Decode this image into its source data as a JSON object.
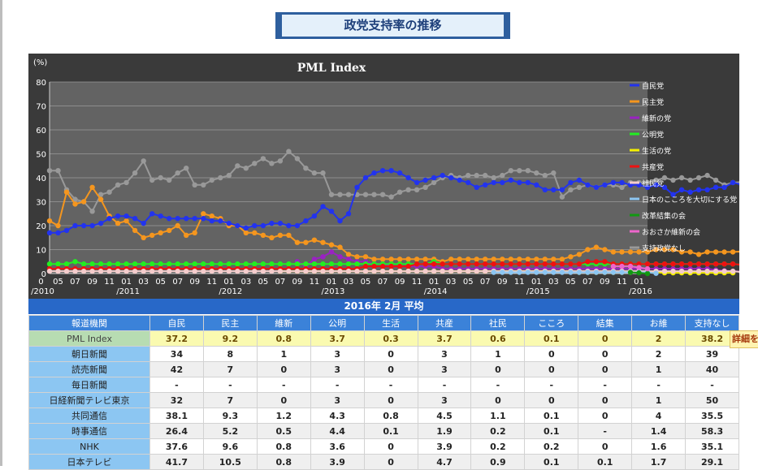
{
  "page_title": "政党支持率の推移",
  "detail_label": "詳細を",
  "table": {
    "title": "2016年 2月 平均",
    "columns": [
      "報道機関",
      "自民",
      "民主",
      "維新",
      "公明",
      "生活",
      "共産",
      "社民",
      "こころ",
      "結集",
      "お維",
      "支持なし"
    ],
    "rows": [
      [
        "PML Index",
        "37.2",
        "9.2",
        "0.8",
        "3.7",
        "0.3",
        "3.7",
        "0.6",
        "0.1",
        "0",
        "2",
        "38.2"
      ],
      [
        "朝日新聞",
        "34",
        "8",
        "1",
        "3",
        "0",
        "3",
        "1",
        "0",
        "0",
        "2",
        "39"
      ],
      [
        "読売新聞",
        "42",
        "7",
        "0",
        "3",
        "0",
        "3",
        "0",
        "0",
        "0",
        "1",
        "40"
      ],
      [
        "毎日新聞",
        "-",
        "-",
        "-",
        "-",
        "-",
        "-",
        "-",
        "-",
        "-",
        "-",
        "-"
      ],
      [
        "日経新聞テレビ東京",
        "32",
        "7",
        "0",
        "3",
        "0",
        "3",
        "0",
        "0",
        "0",
        "1",
        "50"
      ],
      [
        "共同通信",
        "38.1",
        "9.3",
        "1.2",
        "4.3",
        "0.8",
        "4.5",
        "1.1",
        "0.1",
        "0",
        "4",
        "35.5"
      ],
      [
        "時事通信",
        "26.4",
        "5.2",
        "0.5",
        "4.4",
        "0.1",
        "1.9",
        "0.2",
        "0.1",
        "-",
        "1.4",
        "58.3"
      ],
      [
        "NHK",
        "37.6",
        "9.6",
        "0.8",
        "3.6",
        "0",
        "3.9",
        "0.2",
        "0.2",
        "0",
        "1.6",
        "35.1"
      ],
      [
        "日本テレビ",
        "41.7",
        "10.5",
        "0.8",
        "3.9",
        "0",
        "4.7",
        "0.9",
        "0.1",
        "0.1",
        "1.7",
        "29.1"
      ]
    ]
  },
  "chart_data": {
    "type": "line",
    "title": "PML Index",
    "ylabel": "(%)",
    "ylim": [
      0,
      80
    ],
    "yticks": [
      0,
      10,
      20,
      30,
      40,
      50,
      60,
      70,
      80
    ],
    "xlim": [
      "2010-04",
      "2016-02"
    ],
    "grid": true,
    "legend_position": "right",
    "x_ticks": [
      {
        "m": "2010-03",
        "top": "0",
        "bottom": "/2010"
      },
      {
        "m": "2010-05",
        "top": "05",
        "bottom": ""
      },
      {
        "m": "2010-07",
        "top": "07",
        "bottom": ""
      },
      {
        "m": "2010-09",
        "top": "09",
        "bottom": ""
      },
      {
        "m": "2010-11",
        "top": "11",
        "bottom": ""
      },
      {
        "m": "2011-01",
        "top": "01",
        "bottom": "/2011"
      },
      {
        "m": "2011-03",
        "top": "03",
        "bottom": ""
      },
      {
        "m": "2011-05",
        "top": "05",
        "bottom": ""
      },
      {
        "m": "2011-07",
        "top": "07",
        "bottom": ""
      },
      {
        "m": "2011-09",
        "top": "09",
        "bottom": ""
      },
      {
        "m": "2011-11",
        "top": "11",
        "bottom": ""
      },
      {
        "m": "2012-01",
        "top": "01",
        "bottom": "/2012"
      },
      {
        "m": "2012-03",
        "top": "03",
        "bottom": ""
      },
      {
        "m": "2012-05",
        "top": "05",
        "bottom": ""
      },
      {
        "m": "2012-07",
        "top": "07",
        "bottom": ""
      },
      {
        "m": "2012-09",
        "top": "09",
        "bottom": ""
      },
      {
        "m": "2012-11",
        "top": "11",
        "bottom": ""
      },
      {
        "m": "2013-01",
        "top": "01",
        "bottom": "/2013"
      },
      {
        "m": "2013-03",
        "top": "03",
        "bottom": ""
      },
      {
        "m": "2013-05",
        "top": "05",
        "bottom": ""
      },
      {
        "m": "2013-07",
        "top": "07",
        "bottom": ""
      },
      {
        "m": "2013-09",
        "top": "09",
        "bottom": ""
      },
      {
        "m": "2013-11",
        "top": "11",
        "bottom": ""
      },
      {
        "m": "2014-01",
        "top": "01",
        "bottom": "/2014"
      },
      {
        "m": "2014-03",
        "top": "03",
        "bottom": ""
      },
      {
        "m": "2014-05",
        "top": "05",
        "bottom": ""
      },
      {
        "m": "2014-07",
        "top": "07",
        "bottom": ""
      },
      {
        "m": "2014-09",
        "top": "09",
        "bottom": ""
      },
      {
        "m": "2014-11",
        "top": "11",
        "bottom": ""
      },
      {
        "m": "2015-01",
        "top": "01",
        "bottom": "/2015"
      },
      {
        "m": "2015-03",
        "top": "03",
        "bottom": ""
      },
      {
        "m": "2015-05",
        "top": "05",
        "bottom": ""
      },
      {
        "m": "2015-07",
        "top": "07",
        "bottom": ""
      },
      {
        "m": "2015-09",
        "top": "09",
        "bottom": ""
      },
      {
        "m": "2015-11",
        "top": "11",
        "bottom": ""
      },
      {
        "m": "2016-01",
        "top": "01",
        "bottom": "/2016"
      }
    ],
    "series": [
      {
        "name": "自民党",
        "color": "#2233ee",
        "start": "2010-04",
        "values": [
          17,
          17,
          18,
          20,
          20,
          20,
          21,
          23,
          24,
          24,
          23,
          21,
          25,
          24,
          23,
          23,
          23,
          23,
          23,
          22,
          22,
          21,
          20,
          19,
          20,
          20,
          21,
          21,
          20,
          20,
          22,
          24,
          28,
          26,
          22,
          25,
          36,
          40,
          42,
          43,
          43,
          42,
          40,
          38,
          39,
          40,
          41,
          40,
          39,
          38,
          36,
          37,
          38,
          38,
          39,
          38,
          38,
          37,
          35,
          35,
          35,
          38,
          39,
          37,
          36,
          37,
          38,
          38,
          37,
          37,
          36,
          37,
          36,
          33,
          35,
          34,
          35,
          35,
          36,
          36,
          38,
          37.2
        ]
      },
      {
        "name": "民主党",
        "color": "#f5961e",
        "start": "2010-04",
        "values": [
          22,
          20,
          34,
          29,
          30,
          36,
          31,
          24,
          21,
          22,
          18,
          15,
          16,
          17,
          18,
          20,
          16,
          17,
          25,
          24,
          23,
          20,
          20,
          17,
          17,
          16,
          15,
          16,
          16,
          13,
          13,
          14,
          13,
          12,
          11,
          8,
          7,
          7,
          6,
          6,
          6,
          6,
          6,
          6,
          6,
          6,
          5,
          6,
          6,
          6,
          6,
          6,
          6,
          6,
          6,
          6,
          6,
          6,
          6,
          6,
          6,
          7,
          8,
          10,
          11,
          10,
          9,
          9,
          9,
          9,
          9,
          10,
          10,
          10,
          9,
          9,
          8,
          9,
          9,
          9,
          9,
          9.2
        ]
      },
      {
        "name": "維新の党",
        "color": "#9a22c2",
        "start": "2012-09",
        "values": [
          5,
          3,
          6,
          7,
          9,
          7,
          6,
          5,
          5,
          4,
          4,
          3,
          3,
          3,
          3,
          3,
          3,
          2,
          2,
          2,
          2,
          2,
          2,
          2,
          2,
          2,
          2,
          2,
          2,
          2,
          2,
          2,
          2,
          2,
          2,
          2,
          2,
          2,
          2,
          2,
          2,
          2,
          2,
          2,
          2,
          2,
          2,
          2,
          2,
          1.5,
          1.2,
          1,
          0.8
        ]
      },
      {
        "name": "公明党",
        "color": "#22ee22",
        "start": "2010-04",
        "values": [
          4,
          4,
          4,
          5,
          4,
          4,
          4,
          4,
          4,
          4,
          4,
          4,
          4,
          4,
          4,
          4,
          4,
          4,
          4,
          4,
          4,
          4,
          4,
          4,
          4,
          4,
          4,
          4,
          4,
          4,
          4,
          4,
          4,
          4,
          4,
          4,
          4,
          4,
          4,
          4,
          4,
          4,
          4,
          4,
          4,
          5,
          4,
          4,
          4,
          4,
          4,
          4,
          4,
          4,
          4,
          4,
          4,
          4,
          4,
          4,
          4,
          4,
          4,
          4,
          4,
          4,
          4,
          4,
          4,
          4,
          4,
          4,
          4,
          4,
          4,
          4,
          4,
          4,
          4,
          4,
          4,
          3.7
        ]
      },
      {
        "name": "生活の党",
        "color": "#f5f000",
        "start": "2012-07",
        "values": [
          1,
          1,
          1,
          1,
          1,
          1,
          1,
          1,
          1,
          1,
          1,
          1,
          1,
          1,
          1,
          1,
          1,
          1,
          1,
          1,
          1,
          1,
          1,
          1,
          1,
          1,
          1,
          1,
          1,
          1,
          1,
          1,
          1,
          1,
          1,
          0.5,
          0.5,
          0.5,
          0.5,
          0.5,
          0.5,
          0.5,
          0.5,
          0.5,
          0.5,
          0.3,
          0.3,
          0.3,
          0.3,
          0.3,
          0.3,
          0.3,
          0.3,
          0.3
        ]
      },
      {
        "name": "共産党",
        "color": "#ee1111",
        "start": "2010-04",
        "values": [
          2,
          2,
          2,
          2,
          2,
          2,
          2,
          2,
          2,
          2,
          2,
          2,
          2,
          2,
          2,
          2,
          2,
          2,
          2,
          2,
          2,
          2,
          2,
          2,
          2,
          2,
          2,
          2,
          2,
          2,
          2,
          2,
          2,
          2,
          2,
          2,
          2,
          3,
          3,
          3,
          3,
          3,
          3,
          4,
          4,
          4,
          4,
          4,
          4,
          4,
          4,
          4,
          4,
          4,
          4,
          4,
          4,
          4,
          4,
          4,
          4,
          4,
          4,
          5,
          5,
          5,
          4,
          4,
          4,
          4,
          4,
          4,
          4,
          4,
          4,
          4,
          4,
          4,
          4,
          4,
          4,
          3.7
        ]
      },
      {
        "name": "社民党",
        "color": "#f4cccc",
        "start": "2010-04",
        "values": [
          1,
          1,
          1,
          1,
          1,
          1,
          1,
          1,
          1,
          1,
          1,
          1,
          1,
          1,
          1,
          1,
          1,
          1,
          1,
          1,
          1,
          1,
          1,
          1,
          1,
          1,
          1,
          1,
          1,
          1,
          1,
          1,
          1,
          1,
          1,
          1,
          1,
          1,
          1,
          1,
          1,
          1,
          1,
          1,
          1,
          1,
          1,
          1,
          1,
          1,
          1,
          1,
          1,
          1,
          1,
          1,
          1,
          1,
          1,
          1,
          1,
          1,
          1,
          1,
          1,
          1,
          1,
          1,
          1,
          1,
          1,
          1,
          1,
          1,
          1,
          1,
          1,
          1,
          1,
          1,
          1,
          0.6
        ]
      },
      {
        "name": "日本のこころを大切にする党",
        "color": "#8cc6f2",
        "start": "2014-08",
        "values": [
          0.5,
          0.5,
          0.5,
          0.5,
          0.5,
          0.5,
          0.5,
          0.5,
          0.5,
          0.5,
          0.5,
          0.5,
          0.5,
          0.5,
          0.5,
          0.5,
          0.5,
          0.5,
          0.5,
          0.1
        ]
      },
      {
        "name": "改革結集の会",
        "color": "#119911",
        "start": "2015-12",
        "values": [
          0.5,
          0.3,
          0
        ]
      },
      {
        "name": "おおさか維新の会",
        "color": "#ee66cc",
        "start": "2015-10",
        "values": [
          3,
          3,
          3,
          2.5,
          2
        ]
      },
      {
        "name": "支持政党なし",
        "color": "#999999",
        "start": "2010-04",
        "values": [
          43,
          43,
          35,
          31,
          30,
          26,
          33,
          34,
          37,
          38,
          42,
          47,
          39,
          40,
          39,
          42,
          44,
          37,
          37,
          39,
          40,
          41,
          45,
          44,
          46,
          48,
          46,
          47,
          51,
          48,
          44,
          42,
          42,
          33,
          33,
          33,
          33,
          33,
          33,
          33,
          32,
          34,
          35,
          35,
          36,
          38,
          40,
          41,
          40,
          41,
          41,
          41,
          40,
          41,
          43,
          43,
          43,
          42,
          41,
          42,
          32,
          35,
          36,
          37,
          36,
          37,
          37,
          36,
          38,
          38,
          38,
          39,
          40,
          39,
          40,
          39,
          40,
          41,
          39,
          37,
          38,
          38.2
        ]
      }
    ]
  }
}
